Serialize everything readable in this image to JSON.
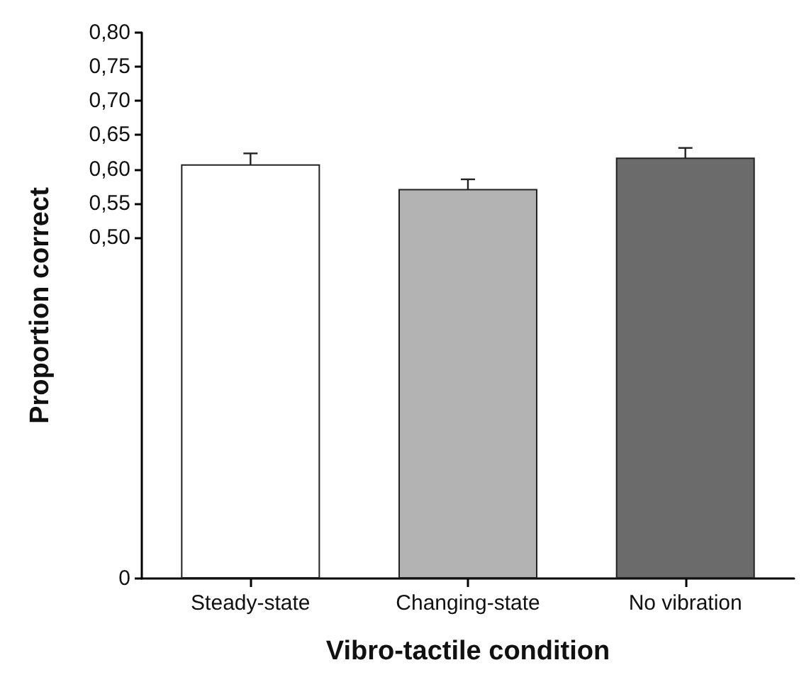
{
  "chart_data": {
    "type": "bar",
    "xlabel": "Vibro-tactile condition",
    "ylabel": "Proportion correct",
    "categories": [
      "Steady-state",
      "Changing-state",
      "No vibration"
    ],
    "values": [
      0.607,
      0.571,
      0.617
    ],
    "errors": [
      0.016,
      0.014,
      0.014
    ],
    "colors": [
      "#ffffff",
      "#b3b3b3",
      "#6b6b6b"
    ],
    "ylim": [
      0,
      0.8
    ],
    "yticks": [
      {
        "value": 0,
        "label": "0"
      },
      {
        "value": 0.5,
        "label": "0,50"
      },
      {
        "value": 0.55,
        "label": "0,55"
      },
      {
        "value": 0.6,
        "label": "0,60"
      },
      {
        "value": 0.65,
        "label": "0,65"
      },
      {
        "value": 0.7,
        "label": "0,70"
      },
      {
        "value": 0.75,
        "label": "0,75"
      },
      {
        "value": 0.8,
        "label": "0,80"
      }
    ],
    "grid": false
  }
}
